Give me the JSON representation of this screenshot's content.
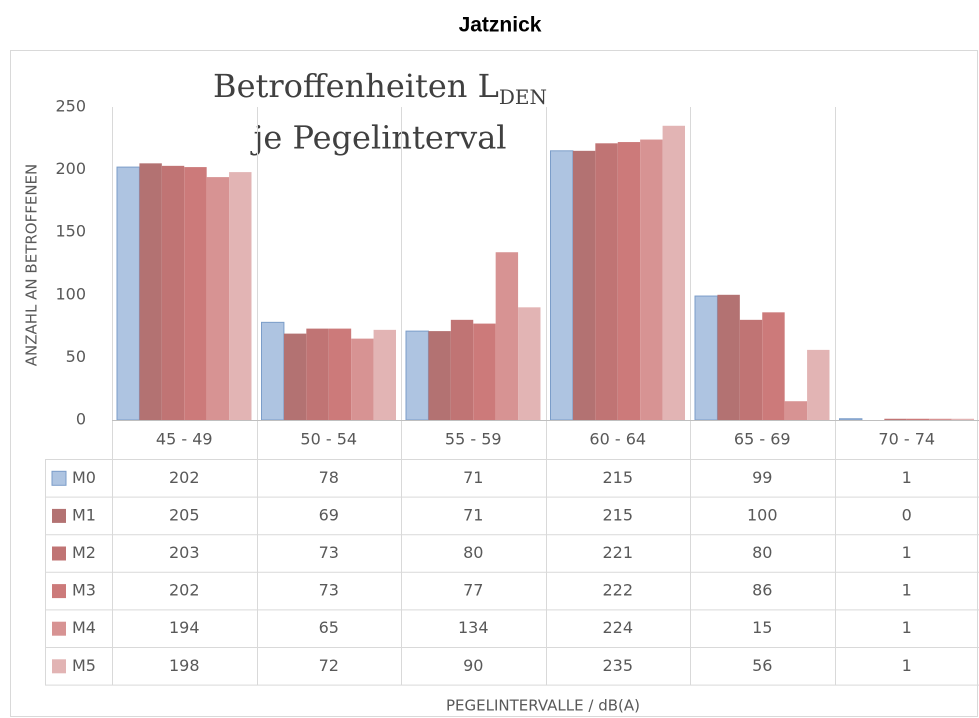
{
  "chart_data": {
    "type": "bar",
    "page_title": "Jatznick",
    "title_main": "Betroffenheiten L",
    "title_subscript": "DEN",
    "title_line2": "je Pegelinterval",
    "y_label": "ANZAHL AN BETROFFENEN",
    "x_label": "PEGELINTERVALLE / dB(A)",
    "categories": [
      "45 - 49",
      "50 - 54",
      "55 - 59",
      "60 - 64",
      "65 - 69",
      "70 - 74"
    ],
    "series": [
      {
        "name": "M0",
        "color": "#aec4e1",
        "values": [
          202,
          78,
          71,
          215,
          99,
          1
        ]
      },
      {
        "name": "M1",
        "color": "#b37272",
        "values": [
          205,
          69,
          71,
          215,
          100,
          0
        ]
      },
      {
        "name": "M2",
        "color": "#c07474",
        "values": [
          203,
          73,
          80,
          221,
          80,
          1
        ]
      },
      {
        "name": "M3",
        "color": "#cc7a7a",
        "values": [
          202,
          73,
          77,
          222,
          86,
          1
        ]
      },
      {
        "name": "M4",
        "color": "#d79393",
        "values": [
          194,
          65,
          134,
          224,
          15,
          1
        ]
      },
      {
        "name": "M5",
        "color": "#e2b4b4",
        "values": [
          198,
          72,
          90,
          235,
          56,
          1
        ]
      }
    ],
    "ylim": [
      0,
      250
    ],
    "yticks": [
      0,
      50,
      100,
      150,
      200,
      250
    ],
    "grid": false
  }
}
